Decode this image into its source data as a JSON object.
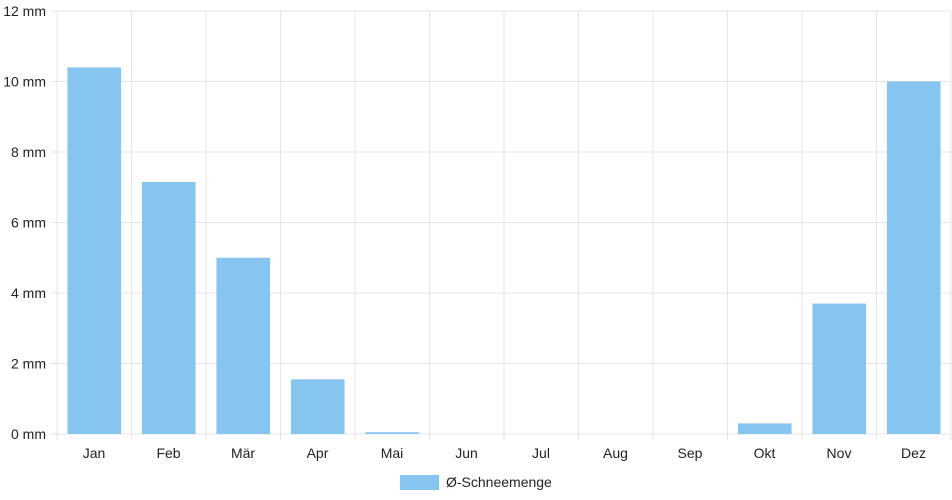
{
  "chart_data": {
    "type": "bar",
    "categories": [
      "Jan",
      "Feb",
      "Mär",
      "Apr",
      "Mai",
      "Jun",
      "Jul",
      "Aug",
      "Sep",
      "Okt",
      "Nov",
      "Dez"
    ],
    "series": [
      {
        "name": "Ø-Schneemenge",
        "values": [
          10.4,
          7.15,
          5.0,
          1.55,
          0.05,
          0,
          0,
          0,
          0,
          0.3,
          3.7,
          10.0
        ],
        "color": "#86c5f0"
      }
    ],
    "y_ticks": [
      "0 mm",
      "2 mm",
      "4 mm",
      "6 mm",
      "8 mm",
      "10 mm",
      "12 mm"
    ],
    "ylim": [
      0,
      12
    ],
    "y_unit": "mm",
    "grid": true,
    "legend_position": "bottom-center",
    "grid_color": "#e4e4e4"
  }
}
